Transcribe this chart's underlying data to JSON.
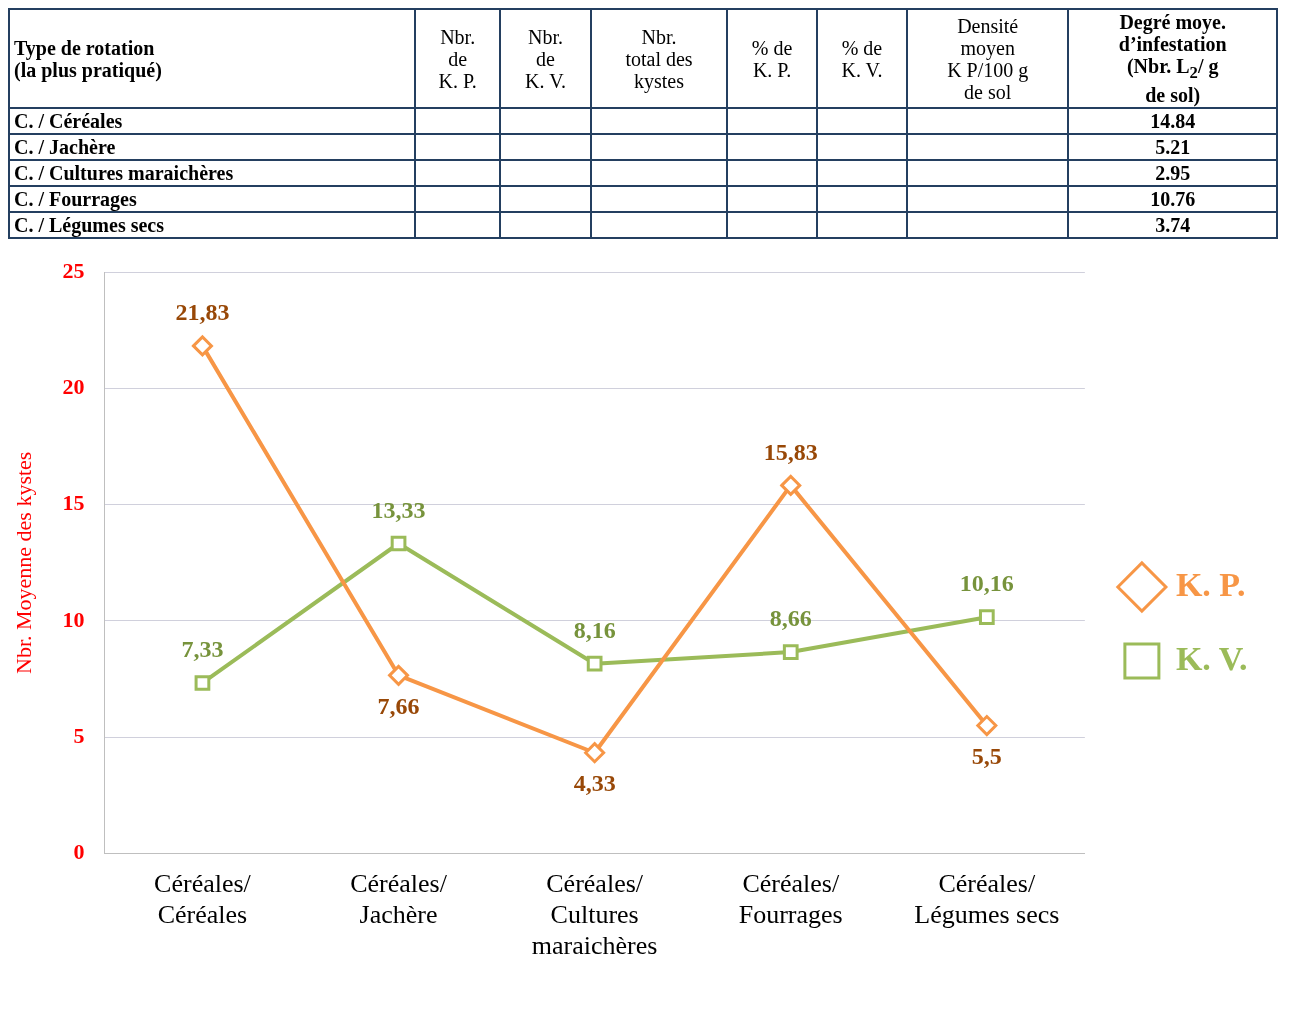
{
  "chart_data": [
    {
      "type": "other",
      "categories": [
        "Type de rotation\n(la plus pratiqué)",
        "Nbr.\nde\nK. P.",
        "Nbr.\nde\nK. V.",
        "Nbr.\ntotal des\nkystes",
        "% de\nK. P.",
        "% de\nK. V.",
        "Densité\nmoyen\nK P/100 g\nde sol",
        "Degré moye.\nd’infestation\n(Nbr. L$_{2}$/ g\nde sol)"
      ],
      "y_categories": [
        "C. / Céréales",
        "C. / Jachère",
        "C. / Cultures maraichères",
        "C. / Fourrages",
        "C. / Légumes secs"
      ],
      "annotations": [
        "14.84",
        "5.21",
        "2.95",
        "10.76",
        "3.74"
      ]
    },
    {
      "type": "line",
      "ylabel": "Nbr. Moyenne des kystes",
      "categories": [
        "Céréales/\nCéréales",
        "Céréales/\nJachère",
        "Céréales/\nCultures\nmaraichères",
        "Céréales/\nFourrages",
        "Céréales/\nLégumes secs"
      ],
      "series": [
        {
          "name": "K. P.",
          "color": "#f79646",
          "marker": "diamond",
          "values": [
            21.83,
            7.66,
            4.33,
            15.83,
            5.5
          ],
          "value_labels": [
            "21,83",
            "7,66",
            "4,33",
            "15,83",
            "5,5"
          ]
        },
        {
          "name": "K. V.",
          "color": "#9bbb59",
          "marker": "square",
          "values": [
            7.33,
            13.33,
            8.16,
            8.66,
            10.16
          ],
          "value_labels": [
            "7,33",
            "13,33",
            "8,16",
            "8,66",
            "10,16"
          ]
        }
      ],
      "ylim": [
        0,
        25
      ],
      "yticks": [
        0,
        5,
        10,
        15,
        20,
        25
      ],
      "grid": "y",
      "legend": "right"
    }
  ]
}
